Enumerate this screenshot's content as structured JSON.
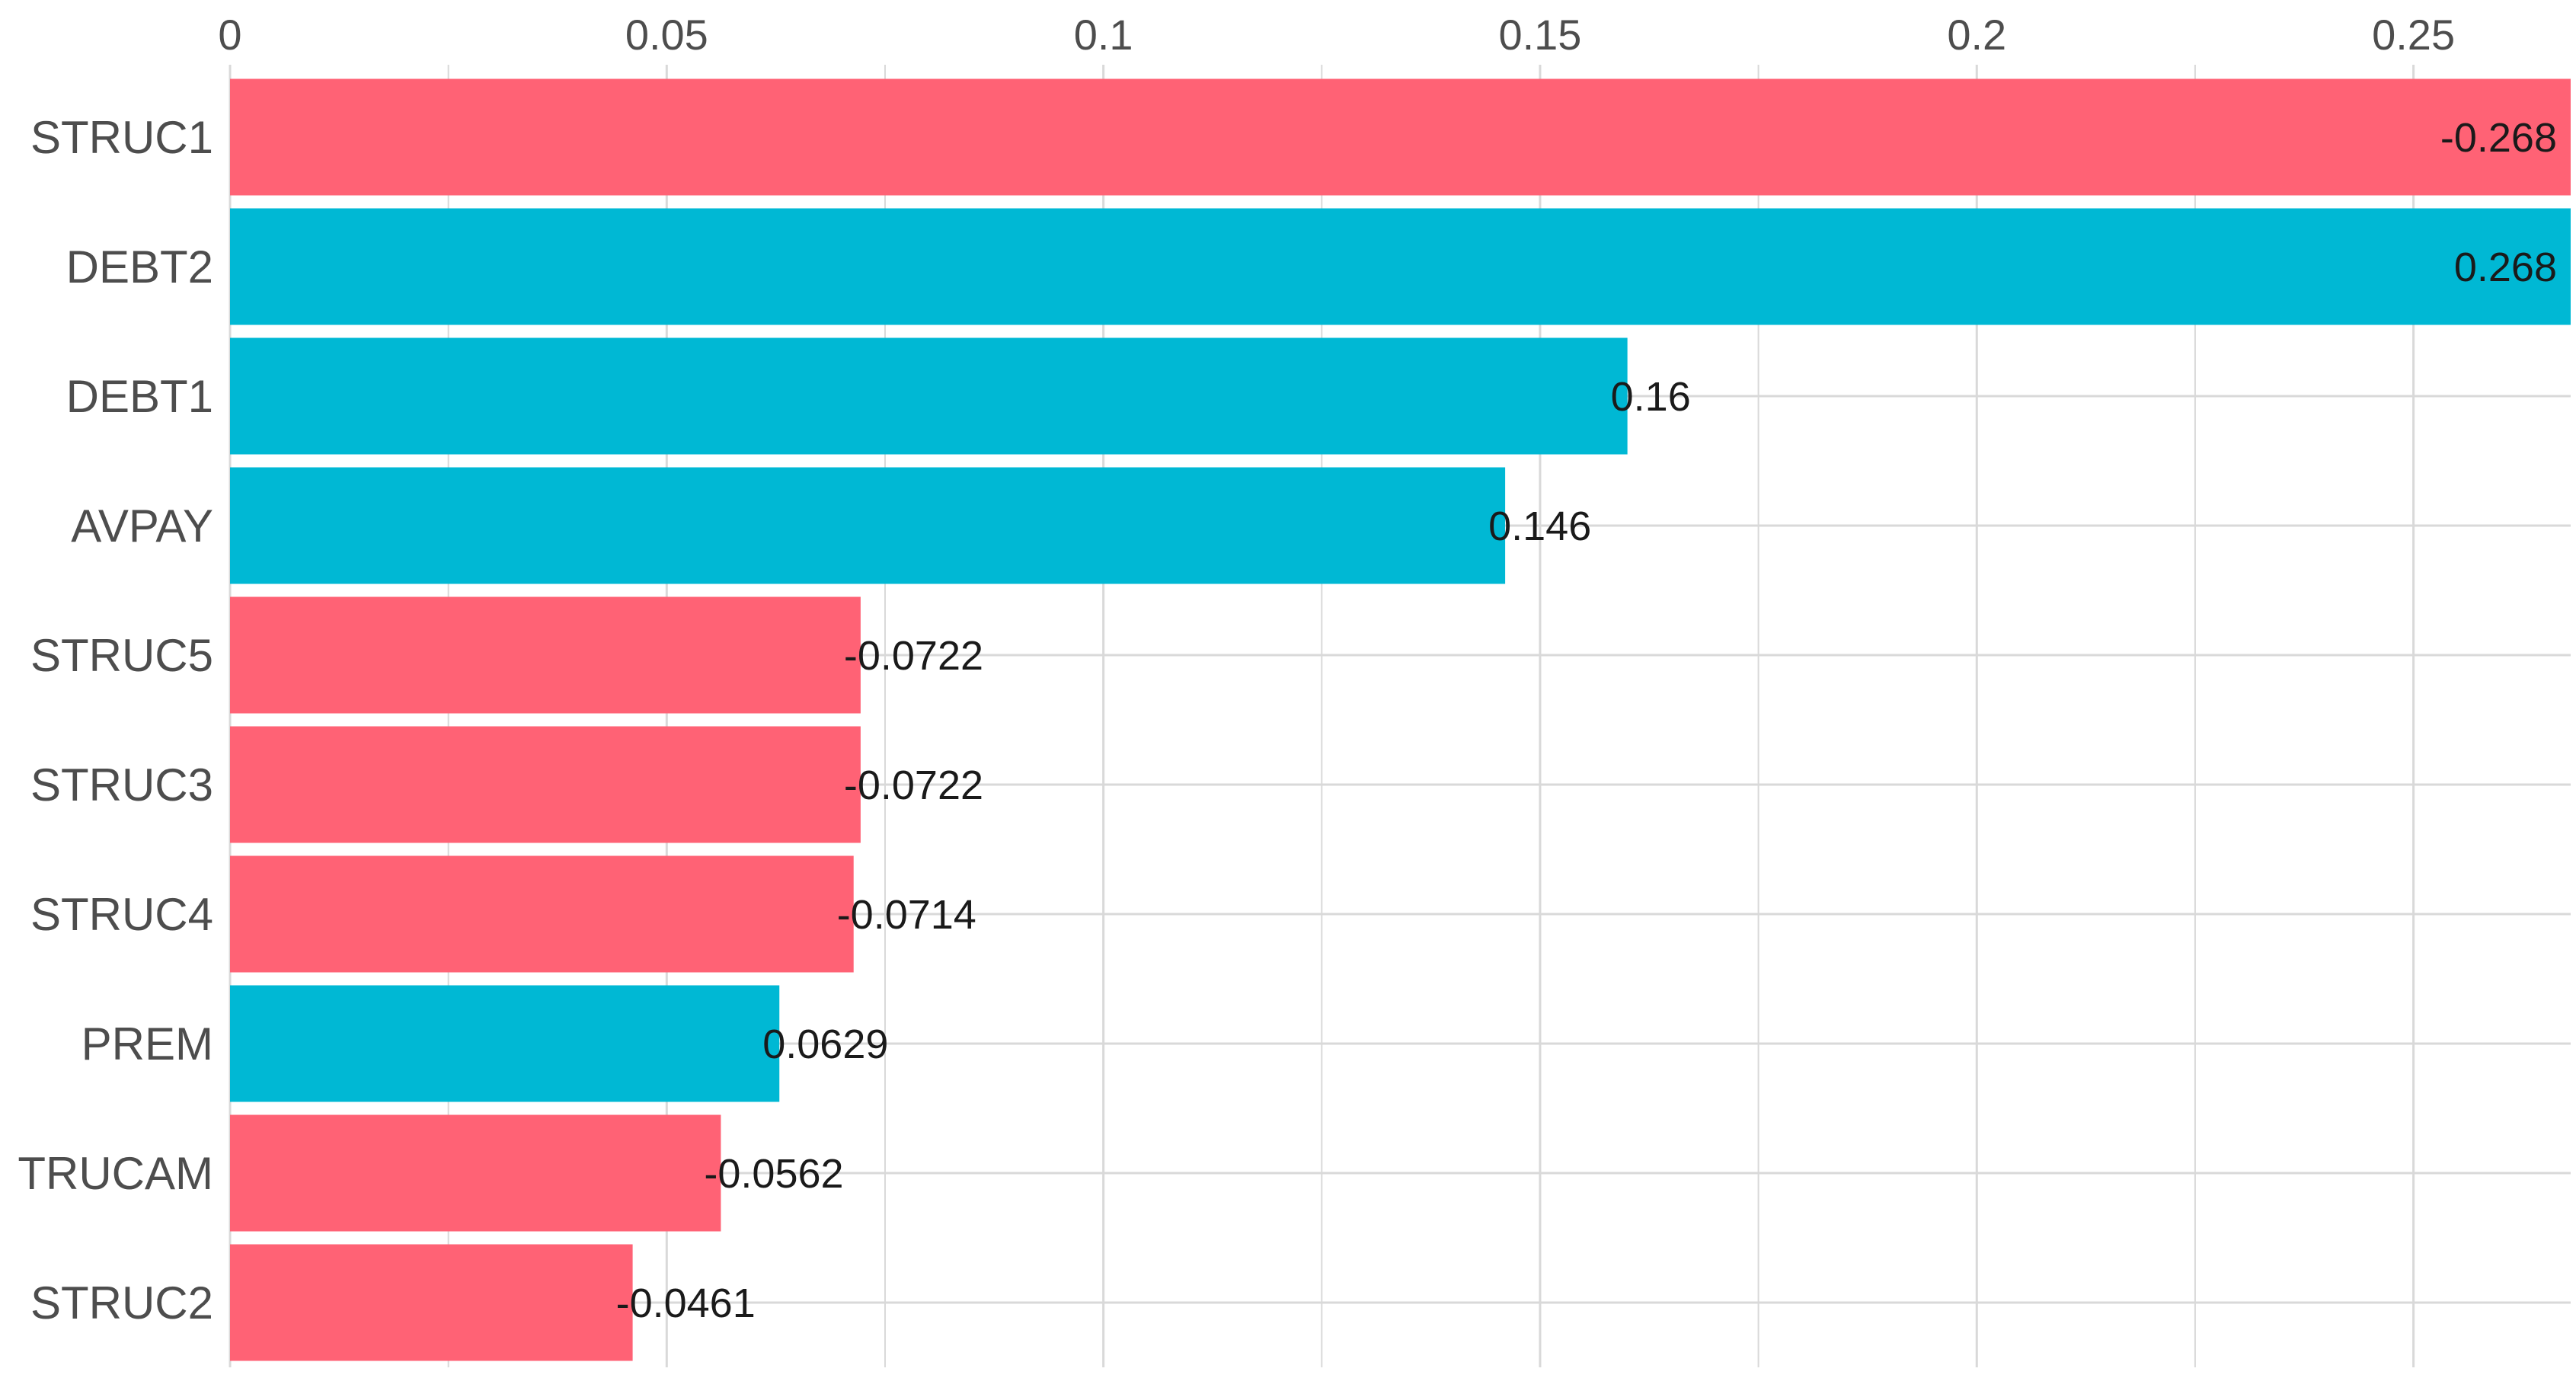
{
  "chart_data": {
    "type": "bar",
    "orientation": "horizontal",
    "title": "",
    "xlabel": "",
    "ylabel": "",
    "xlim": [
      0,
      0.268
    ],
    "x_ticks": [
      0,
      0.05,
      0.1,
      0.15,
      0.2,
      0.25
    ],
    "x_tick_labels": [
      "0",
      "0.05",
      "0.1",
      "0.15",
      "0.2",
      "0.25"
    ],
    "x_axis_position": "top",
    "grid": true,
    "legend": "none",
    "colors": {
      "positive": "#00B8D4",
      "negative": "#FF6275",
      "grid": "#d9d9d9",
      "axis_text": "#4d4d4d",
      "label_text": "#1a1a1a"
    },
    "categories": [
      "STRUC1",
      "DEBT2",
      "DEBT1",
      "AVPAY",
      "STRUC5",
      "STRUC3",
      "STRUC4",
      "PREM",
      "TRUCAM",
      "STRUC2"
    ],
    "values": [
      -0.268,
      0.268,
      0.16,
      0.146,
      -0.0722,
      -0.0722,
      -0.0714,
      0.0629,
      -0.0562,
      -0.0461
    ],
    "value_labels": [
      "-0.268",
      "0.268",
      "0.16",
      "0.146",
      "-0.0722",
      "-0.0722",
      "-0.0714",
      "0.0629",
      "-0.0562",
      "-0.0461"
    ]
  }
}
